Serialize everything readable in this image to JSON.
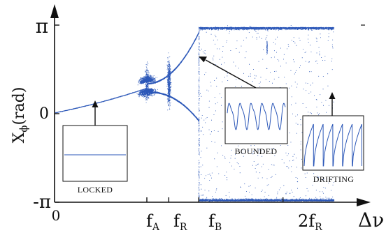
{
  "chart_data": {
    "type": "scatter",
    "ylabel_main": "X",
    "ylabel_sub": "ϕ",
    "ylabel_unit": "(rad)",
    "xlabel": "Δν",
    "yticks": [
      {
        "value": 3.14159,
        "label": "π"
      },
      {
        "value": 0,
        "label": "0"
      },
      {
        "value": -3.14159,
        "label": "-π"
      }
    ],
    "xticks": [
      {
        "value": 0,
        "main": "0",
        "sub": ""
      },
      {
        "value": 4.0,
        "main": "f",
        "sub": "A"
      },
      {
        "value": 4.95,
        "main": "f",
        "sub": "R"
      },
      {
        "value": 6.25,
        "main": "f",
        "sub": "B"
      },
      {
        "value": 9.9,
        "main": "2f",
        "sub": "R"
      }
    ],
    "xlim": [
      0,
      12.3
    ],
    "ylim": [
      -3.45,
      3.45
    ],
    "colors": {
      "points": "#2b57b8",
      "axis": "#111111"
    },
    "regimes": [
      {
        "name": "locked",
        "label": "LOCKED"
      },
      {
        "name": "bounded",
        "label": "BOUNDED"
      },
      {
        "name": "drifting",
        "label": "DRIFTING"
      }
    ]
  }
}
